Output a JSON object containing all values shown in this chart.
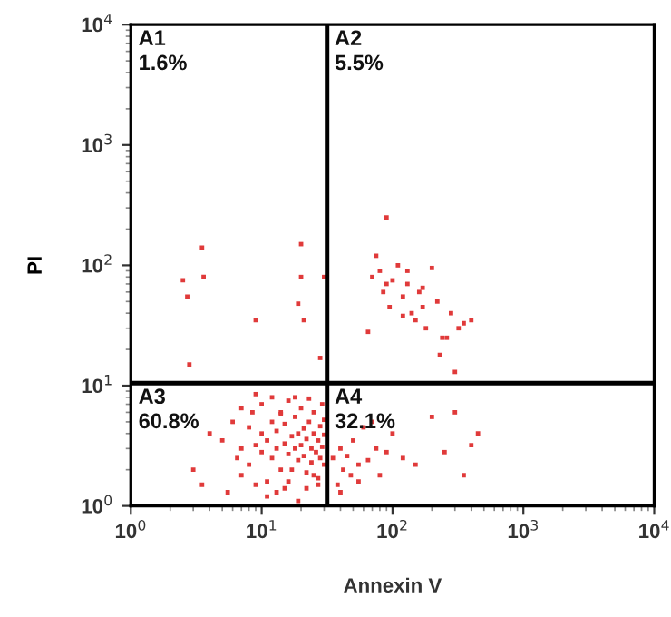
{
  "chart_data": {
    "type": "scatter",
    "xlabel": "Annexin V",
    "ylabel": "PI",
    "log": "xy",
    "marker": "square",
    "xlim": [
      1,
      10000
    ],
    "ylim": [
      1,
      10000
    ],
    "xticks": [
      {
        "value": 1,
        "label": "10$^{0}$"
      },
      {
        "value": 10,
        "label": "10$^{1}$"
      },
      {
        "value": 100,
        "label": "10$^{2}$"
      },
      {
        "value": 1000,
        "label": "10$^{3}$"
      },
      {
        "value": 10000,
        "label": "10$^{4}$"
      }
    ],
    "yticks": [
      {
        "value": 1,
        "label": "10$^{0}$"
      },
      {
        "value": 10,
        "label": "10$^{1}$"
      },
      {
        "value": 100,
        "label": "10$^{2}$"
      },
      {
        "value": 1000,
        "label": "10$^{3}$"
      },
      {
        "value": 10000,
        "label": "10$^{4}$"
      }
    ],
    "grid": false,
    "legend": false,
    "ref_lines": [
      {
        "axis": "x",
        "value": 31.6,
        "color": "#000000"
      },
      {
        "axis": "y",
        "value": 10.5,
        "color": "#000000"
      }
    ],
    "annotations": [
      "A1\n1.6%",
      "A2\n5.5%",
      "A3\n60.8%",
      "A4\n32.1%"
    ],
    "series": [
      {
        "color": "#e03a3a",
        "x": [
          3,
          3.5,
          4,
          5,
          5.5,
          6,
          6.5,
          7,
          7,
          8,
          8,
          8.5,
          9,
          9,
          10,
          10,
          10,
          11,
          11,
          12,
          12,
          12,
          13,
          13,
          14,
          14,
          15,
          15,
          15,
          16,
          16,
          17,
          17,
          18,
          18,
          19,
          19,
          20,
          20,
          21,
          21,
          22,
          22,
          23,
          24,
          24,
          25,
          25,
          26,
          27,
          27,
          28,
          28,
          29,
          29,
          30,
          30,
          30,
          11,
          13,
          16,
          19,
          22,
          25,
          9,
          7,
          14,
          18,
          23,
          27,
          35,
          38,
          40,
          42,
          45,
          48,
          50,
          55,
          60,
          65,
          70,
          75,
          80,
          90,
          100,
          120,
          150,
          200,
          250,
          300,
          350,
          400,
          450,
          40,
          55,
          65,
          70,
          75,
          80,
          85,
          90,
          95,
          100,
          110,
          120,
          130,
          140,
          150,
          160,
          170,
          180,
          200,
          220,
          240,
          260,
          280,
          300,
          320,
          350,
          400,
          130,
          170,
          230,
          90,
          120,
          2.5,
          2.7,
          3.5,
          3.6,
          2.8,
          9,
          20,
          20,
          19,
          21,
          30,
          28
        ],
        "values": [
          2,
          1.5,
          4,
          3.5,
          1.3,
          5,
          2.5,
          3,
          1.8,
          4.5,
          2.2,
          6,
          3.2,
          1.5,
          7,
          2.8,
          4,
          3.5,
          1.6,
          5,
          2.5,
          8,
          3,
          4.2,
          2,
          6,
          3.3,
          1.4,
          4.8,
          2.7,
          7.5,
          3.8,
          2,
          5.5,
          3,
          2.4,
          4,
          3.2,
          6.5,
          2.6,
          4.4,
          3.6,
          1.9,
          5,
          3,
          2.3,
          4,
          6,
          2.8,
          3.5,
          1.7,
          4.6,
          2.5,
          3.1,
          7,
          2.2,
          3.9,
          5.2,
          1.2,
          1.3,
          1.6,
          1.1,
          1.4,
          1.8,
          8.5,
          6.5,
          5.8,
          8,
          7.8,
          1.5,
          2.5,
          1.5,
          3,
          2,
          2.6,
          1.8,
          3.5,
          2.2,
          4.5,
          2.4,
          5,
          3,
          1.8,
          2.8,
          4,
          2.5,
          2.2,
          5.5,
          2.8,
          6,
          1.8,
          3.2,
          4,
          1.3,
          1.6,
          28,
          80,
          120,
          90,
          60,
          250,
          45,
          75,
          100,
          55,
          70,
          40,
          35,
          60,
          65,
          30,
          95,
          50,
          25,
          25,
          40,
          13,
          30,
          33,
          35,
          90,
          45,
          18,
          70,
          38,
          75,
          55,
          140,
          80,
          15,
          35,
          150,
          80,
          48,
          35,
          80,
          17
        ]
      }
    ]
  }
}
